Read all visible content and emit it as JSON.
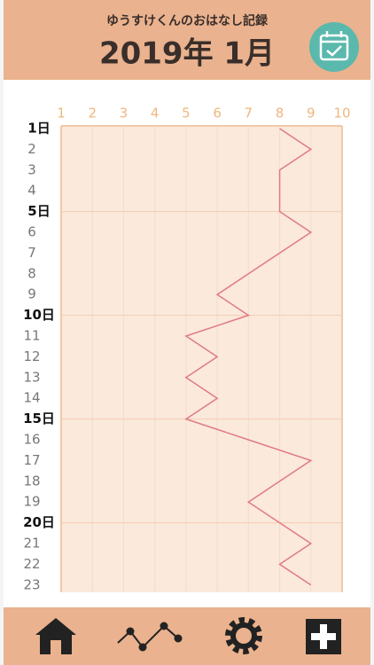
{
  "header": {
    "subtitle": "ゆうすけくんのおはなし記録",
    "title": "2019年 1月"
  },
  "chart_data": {
    "type": "line",
    "categories": [
      "1日",
      "2",
      "3",
      "4",
      "5日",
      "6",
      "7",
      "8",
      "9",
      "10日",
      "11",
      "12",
      "13",
      "14",
      "15日",
      "16",
      "17",
      "18",
      "19",
      "20日",
      "21",
      "22",
      "23"
    ],
    "values": [
      8,
      9,
      8,
      8,
      8,
      9,
      8,
      7,
      6,
      7,
      5,
      6,
      5,
      6,
      5,
      7,
      9,
      8,
      7,
      8,
      9,
      8,
      9
    ],
    "color": "#e07a85",
    "xlim": [
      1,
      10
    ],
    "xticks": [
      1,
      2,
      3,
      4,
      5,
      6,
      7,
      8,
      9,
      10
    ],
    "grid": true
  }
}
